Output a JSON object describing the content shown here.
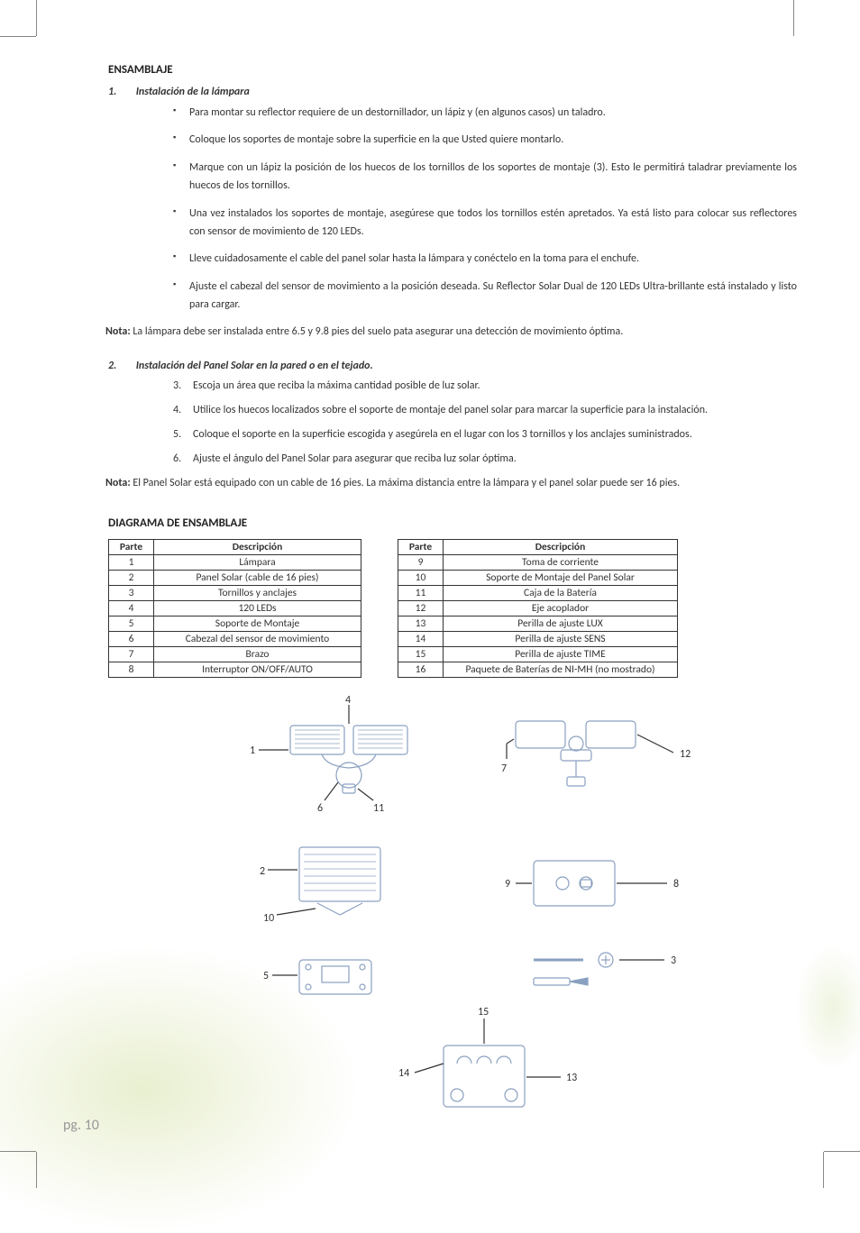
{
  "section1_title": "ENSAMBLAJE",
  "sub1_num": "1.",
  "sub1_title": "Instalación de la lámpara",
  "bullets1": [
    "Para montar su reflector requiere de un destornillador, un lápiz y (en algunos casos) un taladro.",
    "Coloque los soportes de montaje sobre la superficie en la que Usted quiere montarlo.",
    "Marque con un lápiz la posición de los huecos de los tornillos de los soportes de montaje (3). Esto le permitirá taladrar previamente los huecos de los tornillos.",
    "Una vez instalados los soportes de montaje, asegúrese que todos los tornillos estén apretados. Ya está listo para colocar sus reflectores con sensor de movimiento de 120 LEDs.",
    "Lleve cuidadosamente el cable del panel solar hasta la lámpara y conéctelo en la toma para el enchufe.",
    "Ajuste el cabezal del sensor de movimiento a la posición deseada. Su Reflector Solar Dual de 120 LEDs Ultra-brillante está instalado y listo para cargar."
  ],
  "note1_label": "Nota:",
  "note1_text": " La lámpara debe ser instalada entre 6.5 y 9.8 pies del suelo pata asegurar una detección de movimiento óptima.",
  "sub2_num": "2.",
  "sub2_title": "Instalación del Panel Solar en la pared o en el tejado.",
  "steps2": [
    "Escoja un área que reciba la máxima cantidad posible de luz solar.",
    "Utilice los huecos localizados sobre el soporte de montaje del panel solar para marcar la superficie para la instalación.",
    "Coloque el soporte en la superficie escogida y asegúrela en el lugar con los 3 tornillos y los anclajes suministrados.",
    "Ajuste el ángulo del Panel Solar para asegurar que reciba luz solar óptima."
  ],
  "note2_label": "Nota:",
  "note2_text": " El Panel Solar está equipado con un cable de 16 pies. La máxima distancia entre la lámpara y el panel solar puede ser 16 pies.",
  "section2_title": "DIAGRAMA DE ENSAMBLAJE",
  "table_header_part": "Parte",
  "table_header_desc": "Descripción",
  "table_left": [
    [
      "1",
      "Lámpara"
    ],
    [
      "2",
      "Panel Solar (cable de 16 pies)"
    ],
    [
      "3",
      "Tornillos y anclajes"
    ],
    [
      "4",
      "120 LEDs"
    ],
    [
      "5",
      "Soporte de Montaje"
    ],
    [
      "6",
      "Cabezal del sensor de movimiento"
    ],
    [
      "7",
      "Brazo"
    ],
    [
      "8",
      "Interruptor    ON/OFF/AUTO"
    ]
  ],
  "table_right": [
    [
      "9",
      "Toma de corriente"
    ],
    [
      "10",
      "Soporte de Montaje del Panel Solar"
    ],
    [
      "11",
      "Caja de la Batería"
    ],
    [
      "12",
      "Eje acoplador"
    ],
    [
      "13",
      "Perilla de ajuste LUX"
    ],
    [
      "14",
      "Perilla de ajuste SENS"
    ],
    [
      "15",
      "Perilla de ajuste TIME"
    ],
    [
      "16",
      "Paquete de Baterías de NI-MH (no mostrado)"
    ]
  ],
  "diagram_labels": {
    "l1": "1",
    "l2": "2",
    "l3": "3",
    "l4": "4",
    "l5": "5",
    "l6": "6",
    "l7": "7",
    "l8": "8",
    "l9": "9",
    "l10": "10",
    "l11": "11",
    "l12": "12",
    "l13": "13",
    "l14": "14",
    "l15": "15"
  },
  "page_number": "pg. 10",
  "colors": {
    "text": "#333333",
    "border": "#333333",
    "pagenum": "#999999",
    "diagram_stroke": "#8aa0c0"
  }
}
